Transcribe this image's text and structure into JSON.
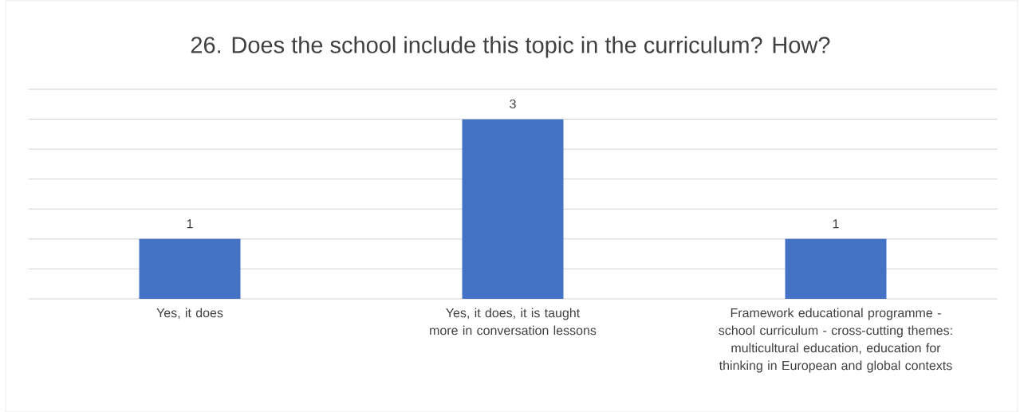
{
  "chart_data": {
    "type": "bar",
    "title": "26. Does the school include this topic in the curriculum? How?",
    "categories": [
      "Yes, it does",
      "Yes, it does, it is taught more in conversation lessons",
      "Framework educational programme - school curriculum - cross-cutting themes: multicultural education, education for thinking in European and global contexts"
    ],
    "values": [
      1,
      3,
      1
    ],
    "color": "#4472c4",
    "data_labels": true,
    "ylim": [
      0,
      3.5
    ],
    "yticks": [
      {
        "value": 0,
        "label": null
      },
      {
        "value": 0.5,
        "label": null
      },
      {
        "value": 1,
        "label": null
      },
      {
        "value": 1.5,
        "label": null
      },
      {
        "value": 2,
        "label": null
      },
      {
        "value": 2.5,
        "label": null
      },
      {
        "value": 3,
        "label": null
      },
      {
        "value": 3.5,
        "label": null
      }
    ],
    "tick_labels": "x",
    "grid": "y"
  }
}
